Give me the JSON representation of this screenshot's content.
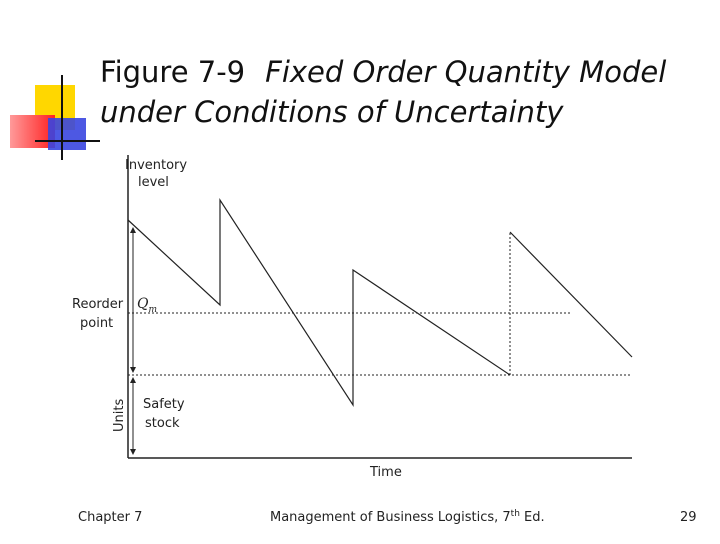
{
  "header": {
    "figure": "Figure 7-9",
    "title_line1": "Fixed Order Quantity Model",
    "title_line2": "under Conditions of Uncertainty"
  },
  "diagram": {
    "y_label": [
      "Inventory",
      "level"
    ],
    "reorder_label": [
      "Reorder",
      "point"
    ],
    "q_label": "Q",
    "q_sub": "m",
    "units_label": "Units",
    "safety_label": [
      "Safety",
      "stock"
    ],
    "x_label": "Time"
  },
  "footer": {
    "left": "Chapter 7",
    "center": "Management of Business Logistics, 7",
    "center_sup": "th",
    "center_end": " Ed.",
    "right": "29"
  }
}
